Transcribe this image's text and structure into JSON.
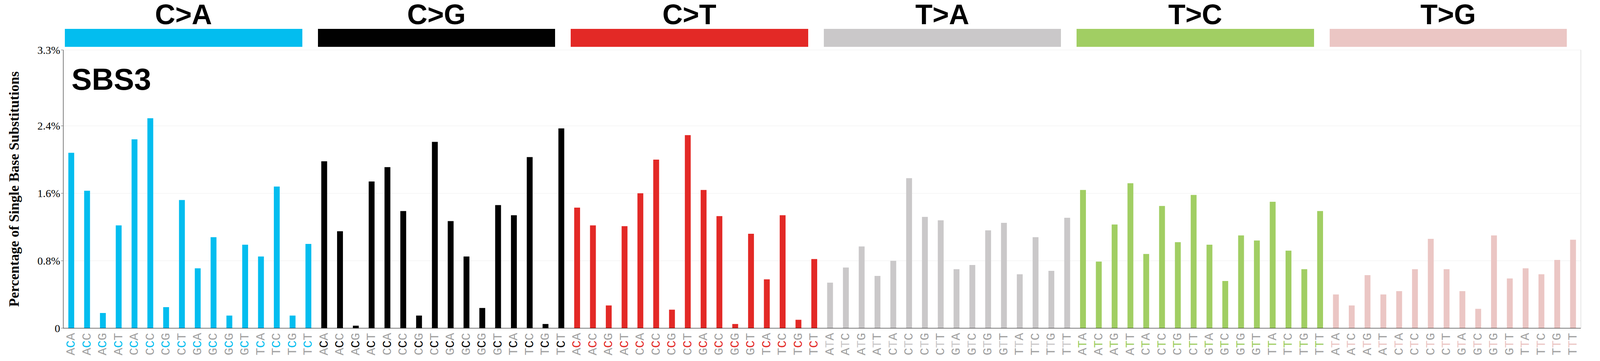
{
  "chart_data": {
    "type": "bar",
    "title": "SBS3",
    "y_label": "Percentage of Single Base Substitutions",
    "categories": [
      "ACA",
      "ACC",
      "ACG",
      "ACT",
      "CCA",
      "CCC",
      "CCG",
      "CCT",
      "GCA",
      "GCC",
      "GCG",
      "GCT",
      "TCA",
      "TCC",
      "TCG",
      "TCT",
      "ACA",
      "ACC",
      "ACG",
      "ACT",
      "CCA",
      "CCC",
      "CCG",
      "CCT",
      "GCA",
      "GCC",
      "GCG",
      "GCT",
      "TCA",
      "TCC",
      "TCG",
      "TCT",
      "ACA",
      "ACC",
      "ACG",
      "ACT",
      "CCA",
      "CCC",
      "CCG",
      "CCT",
      "GCA",
      "GCC",
      "GCG",
      "GCT",
      "TCA",
      "TCC",
      "TCG",
      "TCT",
      "ATA",
      "ATC",
      "ATG",
      "ATT",
      "CTA",
      "CTC",
      "CTG",
      "CTT",
      "GTA",
      "GTC",
      "GTG",
      "GTT",
      "TTA",
      "TTC",
      "TTG",
      "TTT",
      "ATA",
      "ATC",
      "ATG",
      "ATT",
      "CTA",
      "CTC",
      "CTG",
      "CTT",
      "GTA",
      "GTC",
      "GTG",
      "GTT",
      "TTA",
      "TTC",
      "TTG",
      "TTT",
      "ATA",
      "ATC",
      "ATG",
      "ATT",
      "CTA",
      "CTC",
      "CTG",
      "CTT",
      "GTA",
      "GTC",
      "GTG",
      "GTT",
      "TTA",
      "TTC",
      "TTG",
      "TTT"
    ],
    "series": [
      {
        "name": "C>A",
        "color": "#03BDEF",
        "values": [
          2.08,
          1.63,
          0.18,
          1.22,
          2.24,
          2.49,
          0.25,
          1.52,
          0.71,
          1.08,
          0.15,
          0.99,
          0.85,
          1.68,
          0.15,
          1.0,
          null,
          null,
          null,
          null,
          null,
          null,
          null,
          null,
          null,
          null,
          null,
          null,
          null,
          null,
          null,
          null,
          null,
          null,
          null,
          null,
          null,
          null,
          null,
          null,
          null,
          null,
          null,
          null,
          null,
          null,
          null,
          null,
          null,
          null,
          null,
          null,
          null,
          null,
          null,
          null,
          null,
          null,
          null,
          null,
          null,
          null,
          null,
          null,
          null,
          null,
          null,
          null,
          null,
          null,
          null,
          null,
          null,
          null,
          null,
          null,
          null,
          null,
          null,
          null,
          null,
          null,
          null,
          null,
          null,
          null,
          null,
          null,
          null,
          null,
          null,
          null,
          null,
          null,
          null,
          null
        ]
      },
      {
        "name": "C>G",
        "color": "#010101",
        "values": [
          null,
          null,
          null,
          null,
          null,
          null,
          null,
          null,
          null,
          null,
          null,
          null,
          null,
          null,
          null,
          null,
          1.98,
          1.15,
          0.03,
          1.74,
          1.91,
          1.39,
          0.15,
          2.21,
          1.27,
          0.85,
          0.24,
          1.46,
          1.34,
          2.03,
          0.05,
          2.37,
          null,
          null,
          null,
          null,
          null,
          null,
          null,
          null,
          null,
          null,
          null,
          null,
          null,
          null,
          null,
          null,
          null,
          null,
          null,
          null,
          null,
          null,
          null,
          null,
          null,
          null,
          null,
          null,
          null,
          null,
          null,
          null,
          null,
          null,
          null,
          null,
          null,
          null,
          null,
          null,
          null,
          null,
          null,
          null,
          null,
          null,
          null,
          null,
          null,
          null,
          null,
          null,
          null,
          null,
          null,
          null,
          null,
          null,
          null,
          null,
          null,
          null,
          null,
          null
        ]
      },
      {
        "name": "C>T",
        "color": "#E32926",
        "values": [
          null,
          null,
          null,
          null,
          null,
          null,
          null,
          null,
          null,
          null,
          null,
          null,
          null,
          null,
          null,
          null,
          null,
          null,
          null,
          null,
          null,
          null,
          null,
          null,
          null,
          null,
          null,
          null,
          null,
          null,
          null,
          null,
          1.43,
          1.22,
          0.27,
          1.21,
          1.6,
          2.0,
          0.22,
          2.29,
          1.64,
          1.33,
          0.05,
          1.12,
          0.58,
          1.34,
          0.1,
          0.82,
          null,
          null,
          null,
          null,
          null,
          null,
          null,
          null,
          null,
          null,
          null,
          null,
          null,
          null,
          null,
          null,
          null,
          null,
          null,
          null,
          null,
          null,
          null,
          null,
          null,
          null,
          null,
          null,
          null,
          null,
          null,
          null,
          null,
          null,
          null,
          null,
          null,
          null,
          null,
          null,
          null,
          null,
          null,
          null,
          null,
          null,
          null,
          null
        ]
      },
      {
        "name": "T>A",
        "color": "#CAC8C9",
        "values": [
          null,
          null,
          null,
          null,
          null,
          null,
          null,
          null,
          null,
          null,
          null,
          null,
          null,
          null,
          null,
          null,
          null,
          null,
          null,
          null,
          null,
          null,
          null,
          null,
          null,
          null,
          null,
          null,
          null,
          null,
          null,
          null,
          null,
          null,
          null,
          null,
          null,
          null,
          null,
          null,
          null,
          null,
          null,
          null,
          null,
          null,
          null,
          null,
          0.54,
          0.72,
          0.97,
          0.62,
          0.8,
          1.78,
          1.32,
          1.28,
          0.7,
          0.75,
          1.16,
          1.25,
          0.64,
          1.08,
          0.68,
          1.31,
          null,
          null,
          null,
          null,
          null,
          null,
          null,
          null,
          null,
          null,
          null,
          null,
          null,
          null,
          null,
          null,
          null,
          null,
          null,
          null,
          null,
          null,
          null,
          null,
          null,
          null,
          null,
          null,
          null,
          null,
          null,
          null
        ]
      },
      {
        "name": "T>C",
        "color": "#A1CE63",
        "values": [
          null,
          null,
          null,
          null,
          null,
          null,
          null,
          null,
          null,
          null,
          null,
          null,
          null,
          null,
          null,
          null,
          null,
          null,
          null,
          null,
          null,
          null,
          null,
          null,
          null,
          null,
          null,
          null,
          null,
          null,
          null,
          null,
          null,
          null,
          null,
          null,
          null,
          null,
          null,
          null,
          null,
          null,
          null,
          null,
          null,
          null,
          null,
          null,
          null,
          null,
          null,
          null,
          null,
          null,
          null,
          null,
          null,
          null,
          null,
          null,
          null,
          null,
          null,
          null,
          1.64,
          0.79,
          1.23,
          1.72,
          0.88,
          1.45,
          1.02,
          1.58,
          0.99,
          0.56,
          1.1,
          1.04,
          1.5,
          0.92,
          0.7,
          1.39,
          null,
          null,
          null,
          null,
          null,
          null,
          null,
          null,
          null,
          null,
          null,
          null,
          null,
          null,
          null,
          null
        ]
      },
      {
        "name": "T>G",
        "color": "#EBC6C4",
        "values": [
          null,
          null,
          null,
          null,
          null,
          null,
          null,
          null,
          null,
          null,
          null,
          null,
          null,
          null,
          null,
          null,
          null,
          null,
          null,
          null,
          null,
          null,
          null,
          null,
          null,
          null,
          null,
          null,
          null,
          null,
          null,
          null,
          null,
          null,
          null,
          null,
          null,
          null,
          null,
          null,
          null,
          null,
          null,
          null,
          null,
          null,
          null,
          null,
          null,
          null,
          null,
          null,
          null,
          null,
          null,
          null,
          null,
          null,
          null,
          null,
          null,
          null,
          null,
          null,
          null,
          null,
          null,
          null,
          null,
          null,
          null,
          null,
          null,
          null,
          null,
          null,
          null,
          null,
          null,
          null,
          0.4,
          0.27,
          0.63,
          0.4,
          0.44,
          0.7,
          1.06,
          0.7,
          0.44,
          0.23,
          1.1,
          0.59,
          0.71,
          0.64,
          0.81,
          1.05
        ]
      }
    ],
    "ylim": [
      0,
      3.3
    ],
    "yticks": [
      0,
      {
        "value": 0.8,
        "label": "0.8%"
      },
      {
        "value": 1.6,
        "label": "1.6%"
      },
      {
        "value": 2.4,
        "label": "2.4%"
      },
      {
        "value": 3.3,
        "label": "3.3%"
      }
    ],
    "grid": true
  }
}
